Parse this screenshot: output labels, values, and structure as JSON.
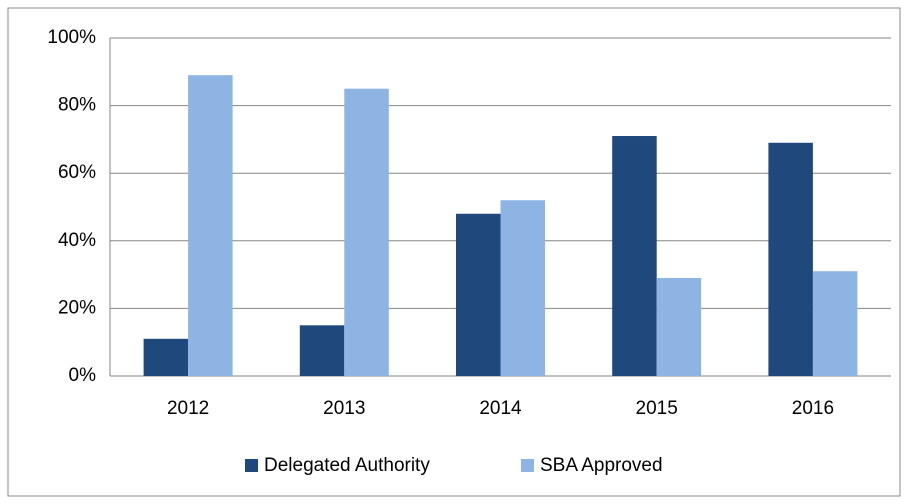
{
  "chart_data": {
    "type": "bar",
    "categories": [
      "2012",
      "2013",
      "2014",
      "2015",
      "2016"
    ],
    "series": [
      {
        "name": "Delegated Authority",
        "color": "#1f497d",
        "values": [
          11,
          15,
          48,
          71,
          69
        ]
      },
      {
        "name": "SBA Approved",
        "color": "#8db4e2",
        "values": [
          89,
          85,
          52,
          29,
          31
        ]
      }
    ],
    "ylim": [
      0,
      100
    ],
    "yticks": [
      {
        "value": 0,
        "label": "0%"
      },
      {
        "value": 20,
        "label": "20%"
      },
      {
        "value": 40,
        "label": "40%"
      },
      {
        "value": 60,
        "label": "60%"
      },
      {
        "value": 80,
        "label": "80%"
      },
      {
        "value": 100,
        "label": "100%"
      }
    ],
    "grid": true,
    "legend": "bottom"
  }
}
